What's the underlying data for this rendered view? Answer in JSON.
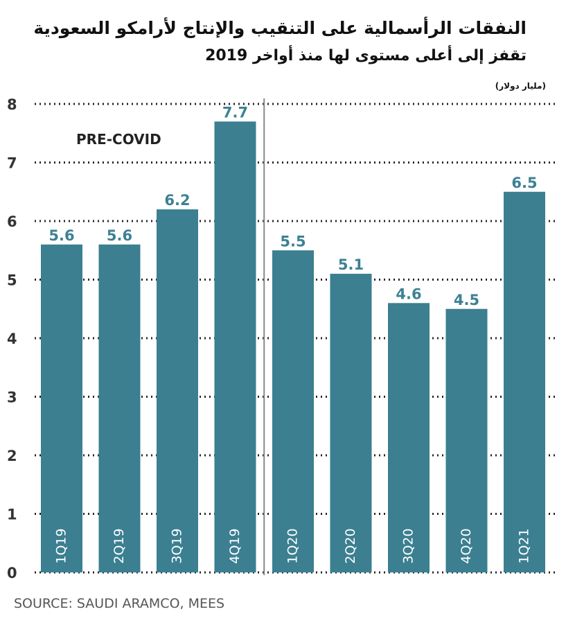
{
  "chart_data": {
    "type": "bar",
    "title": "النفقات الرأسمالية على التنقيب والإنتاج لأرامكو السعودية",
    "subtitle": "تقفز إلى أعلى مستوى لها منذ أواخر 2019",
    "unit_label": "(مليار دولار)",
    "categories": [
      "1Q19",
      "2Q19",
      "3Q19",
      "4Q19",
      "1Q20",
      "2Q20",
      "3Q20",
      "4Q20",
      "1Q21"
    ],
    "values": [
      5.6,
      5.6,
      6.2,
      7.7,
      5.5,
      5.1,
      4.6,
      4.5,
      6.5
    ],
    "value_labels": [
      "5.6",
      "5.6",
      "6.2",
      "7.7",
      "5.5",
      "5.1",
      "4.6",
      "4.5",
      "6.5"
    ],
    "y_ticks": [
      "0",
      "1",
      "2",
      "3",
      "4",
      "5",
      "6",
      "7",
      "8"
    ],
    "ylim": [
      0,
      8
    ],
    "xlabel": "",
    "ylabel": "",
    "grid": true,
    "annotation": "PRE-COVID",
    "source": "SOURCE: SAUDI ARAMCO, MEES",
    "colors": {
      "bar": "#3b7f91",
      "value_label": "#3d8193",
      "grid": "#222222",
      "divider": "#888888"
    }
  }
}
